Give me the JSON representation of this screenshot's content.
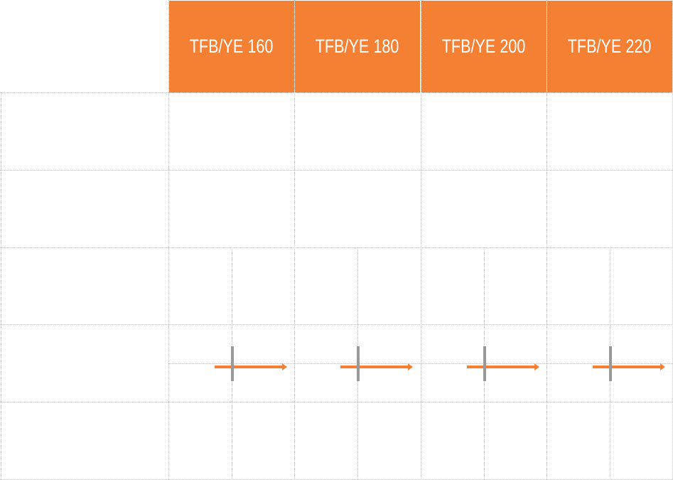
{
  "table": {
    "columns": [
      {
        "label": "TFB/YE 160"
      },
      {
        "label": "TFB/YE 180"
      },
      {
        "label": "TFB/YE 200"
      },
      {
        "label": "TFB/YE 220"
      }
    ],
    "accent_color": "#f38033",
    "marker_color": "#999999"
  }
}
